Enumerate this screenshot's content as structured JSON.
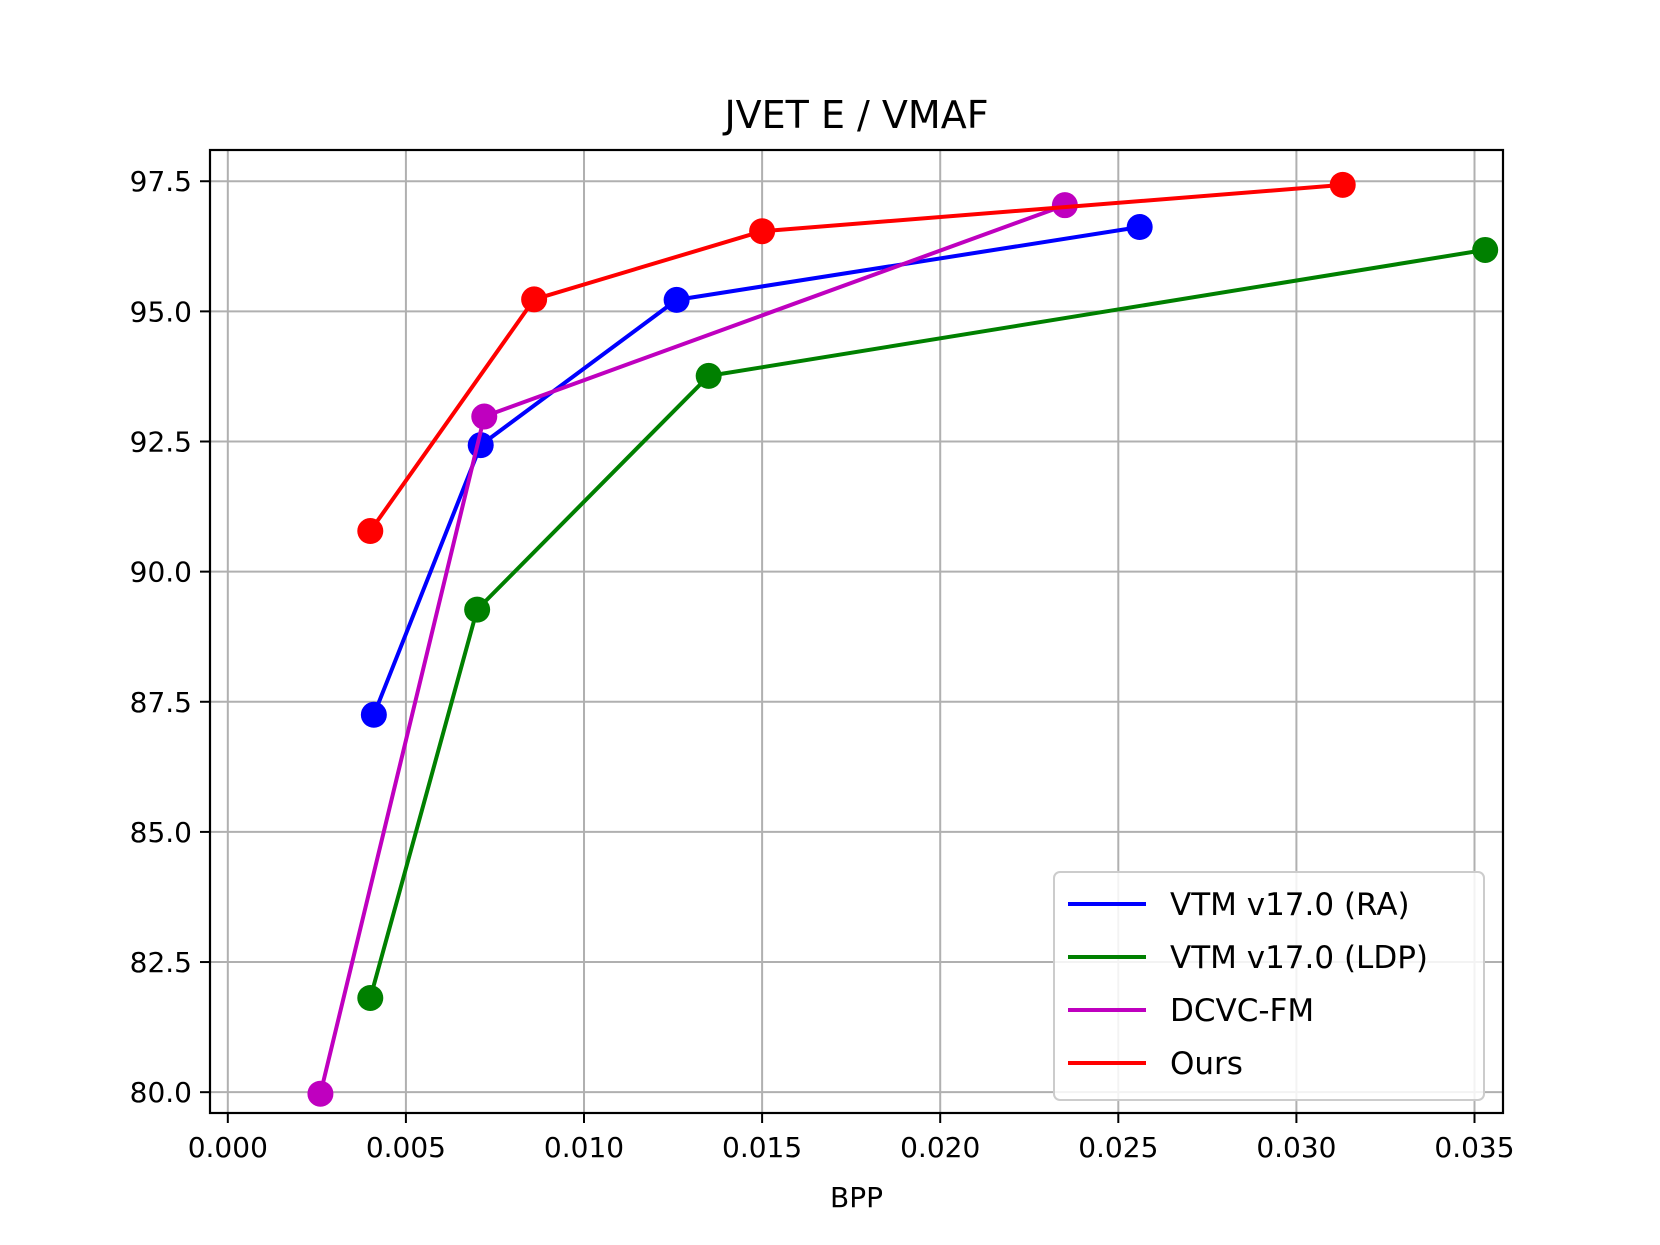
{
  "chart_data": {
    "type": "line",
    "title": "JVET E / VMAF",
    "xlabel": "BPP",
    "ylabel": "",
    "xlim": [
      -0.0005,
      0.0358
    ],
    "ylim": [
      79.6,
      98.1
    ],
    "xticks": [
      0.0,
      0.005,
      0.01,
      0.015,
      0.02,
      0.025,
      0.03,
      0.035
    ],
    "xtick_labels": [
      "0.000",
      "0.005",
      "0.010",
      "0.015",
      "0.020",
      "0.025",
      "0.030",
      "0.035"
    ],
    "yticks": [
      80.0,
      82.5,
      85.0,
      87.5,
      90.0,
      92.5,
      95.0,
      97.5
    ],
    "ytick_labels": [
      "80.0",
      "82.5",
      "85.0",
      "87.5",
      "90.0",
      "92.5",
      "95.0",
      "97.5"
    ],
    "grid": true,
    "legend_position": "lower-right",
    "series": [
      {
        "name": "VTM v17.0 (RA)",
        "color": "#0000ff",
        "x": [
          0.0041,
          0.0071,
          0.0126,
          0.0256
        ],
        "y": [
          87.25,
          92.43,
          95.22,
          96.62
        ]
      },
      {
        "name": "VTM v17.0 (LDP)",
        "color": "#008000",
        "x": [
          0.004,
          0.007,
          0.0135,
          0.0353
        ],
        "y": [
          81.81,
          89.27,
          93.76,
          96.18
        ]
      },
      {
        "name": "DCVC-FM",
        "color": "#bf00bf",
        "x": [
          0.0026,
          0.0072,
          0.0235
        ],
        "y": [
          79.97,
          92.98,
          97.04
        ]
      },
      {
        "name": "Ours",
        "color": "#ff0000",
        "x": [
          0.004,
          0.0086,
          0.015,
          0.0313
        ],
        "y": [
          90.78,
          95.23,
          96.54,
          97.43
        ]
      }
    ]
  }
}
